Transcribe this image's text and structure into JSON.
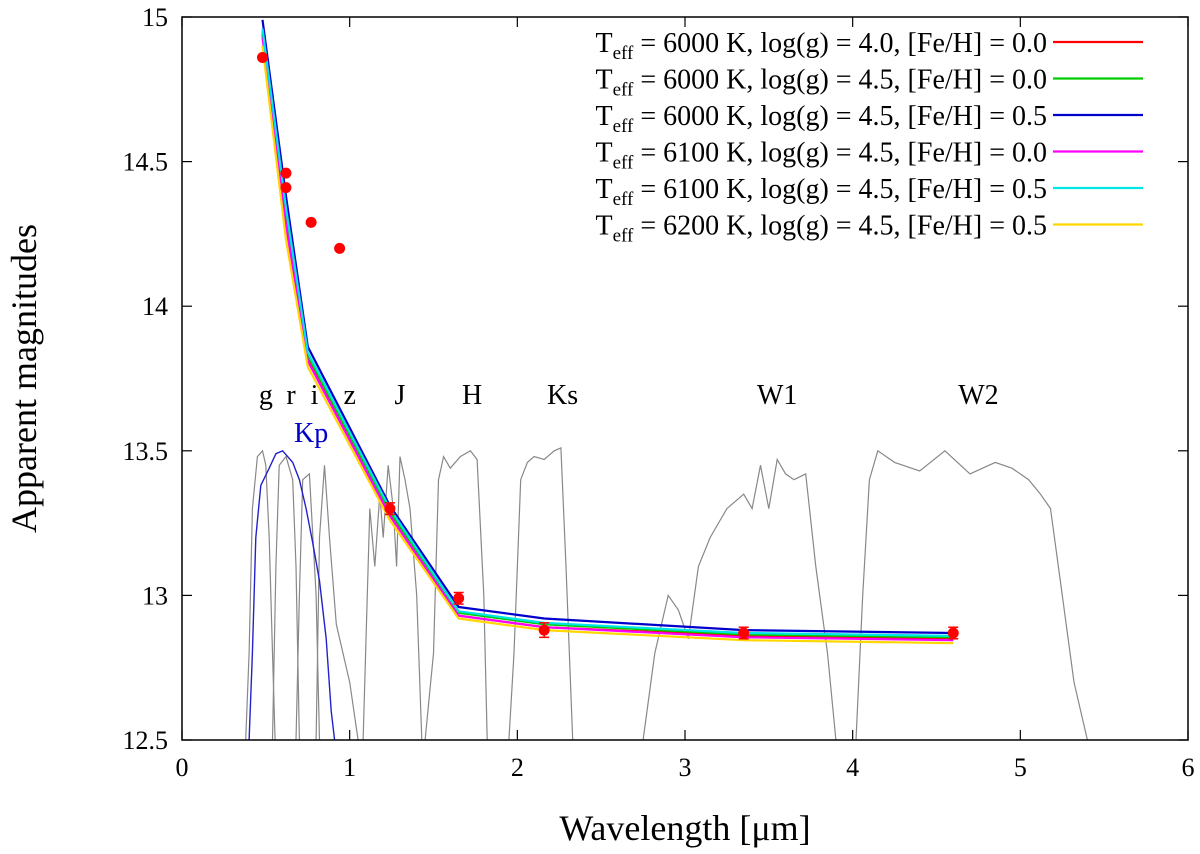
{
  "chart_data": {
    "type": "line",
    "xlabel": "Wavelength [μm]",
    "ylabel": "Apparent magnitudes",
    "xlim": [
      0,
      6
    ],
    "ylim": [
      12.5,
      15
    ],
    "x_ticks": [
      "0",
      "1",
      "2",
      "3",
      "4",
      "5",
      "6"
    ],
    "y_ticks": [
      "12.5",
      "13",
      "13.5",
      "14",
      "14.5",
      "15"
    ],
    "legend_position": "top-right",
    "series": [
      {
        "name": "Teff = 6000 K, log(g) = 4.0, [Fe/H] = 0.0",
        "color": "#ff0000",
        "x": [
          0.48,
          0.62,
          0.75,
          1.24,
          1.65,
          2.16,
          3.35,
          4.6
        ],
        "y": [
          14.94,
          14.3,
          13.82,
          13.28,
          12.93,
          12.89,
          12.86,
          12.85
        ]
      },
      {
        "name": "Teff = 6000 K, log(g) = 4.5, [Fe/H] = 0.0",
        "color": "#00cc00",
        "x": [
          0.48,
          0.62,
          0.75,
          1.24,
          1.65,
          2.16,
          3.35,
          4.6
        ],
        "y": [
          14.95,
          14.31,
          13.83,
          13.29,
          12.94,
          12.9,
          12.865,
          12.855
        ]
      },
      {
        "name": "Teff = 6000 K, log(g) = 4.5, [Fe/H] = 0.5",
        "color": "#0000cc",
        "x": [
          0.48,
          0.62,
          0.75,
          1.24,
          1.65,
          2.16,
          3.35,
          4.6
        ],
        "y": [
          14.99,
          14.38,
          13.86,
          13.31,
          12.96,
          12.92,
          12.88,
          12.87
        ]
      },
      {
        "name": "Teff = 6100 K, log(g) = 4.5, [Fe/H] = 0.0",
        "color": "#ff00ff",
        "x": [
          0.48,
          0.62,
          0.75,
          1.24,
          1.65,
          2.16,
          3.35,
          4.6
        ],
        "y": [
          14.93,
          14.28,
          13.81,
          13.275,
          12.93,
          12.89,
          12.855,
          12.845
        ]
      },
      {
        "name": "Teff = 6100 K, log(g) = 4.5, [Fe/H] = 0.5",
        "color": "#00e5e5",
        "x": [
          0.48,
          0.62,
          0.75,
          1.24,
          1.65,
          2.16,
          3.35,
          4.6
        ],
        "y": [
          14.96,
          14.34,
          13.84,
          13.3,
          12.945,
          12.905,
          12.87,
          12.86
        ]
      },
      {
        "name": "Teff = 6200 K, log(g) = 4.5, [Fe/H] = 0.5",
        "color": "#ffd700",
        "x": [
          0.48,
          0.62,
          0.75,
          1.24,
          1.65,
          2.16,
          3.35,
          4.6
        ],
        "y": [
          14.9,
          14.23,
          13.79,
          13.26,
          12.92,
          12.88,
          12.845,
          12.835
        ]
      }
    ],
    "observations": {
      "color": "#ff0000",
      "x": [
        0.48,
        0.62,
        0.62,
        0.77,
        0.94,
        1.24,
        1.65,
        2.16,
        3.35,
        4.6
      ],
      "y": [
        14.86,
        14.46,
        14.41,
        14.29,
        14.2,
        13.3,
        12.99,
        12.88,
        12.87,
        12.87
      ],
      "yerr": [
        0,
        0,
        0,
        0,
        0,
        0.02,
        0.02,
        0.025,
        0.02,
        0.02
      ]
    },
    "band_labels": [
      {
        "label": "g",
        "x": 0.5
      },
      {
        "label": "r",
        "x": 0.65
      },
      {
        "label": "i",
        "x": 0.79
      },
      {
        "label": "z",
        "x": 1.0
      },
      {
        "label": "J",
        "x": 1.3
      },
      {
        "label": "H",
        "x": 1.73
      },
      {
        "label": "Ks",
        "x": 2.27
      },
      {
        "label": "W1",
        "x": 3.55
      },
      {
        "label": "W2",
        "x": 4.75
      }
    ],
    "kp_label": {
      "label": "Kp",
      "x": 0.77,
      "color": "#0000cc"
    },
    "filter_color": "#888888",
    "kp_filter_color": "#2222cc",
    "filter_curves": [
      {
        "name": "g",
        "x": [
          0.38,
          0.4,
          0.42,
          0.45,
          0.48,
          0.5,
          0.52,
          0.54,
          0.555
        ],
        "y": [
          12.5,
          12.8,
          13.3,
          13.48,
          13.5,
          13.45,
          13.2,
          12.8,
          12.5
        ]
      },
      {
        "name": "r",
        "x": [
          0.54,
          0.56,
          0.58,
          0.62,
          0.66,
          0.68,
          0.7
        ],
        "y": [
          12.5,
          13.1,
          13.45,
          13.48,
          13.4,
          13.1,
          12.5
        ]
      },
      {
        "name": "i",
        "x": [
          0.68,
          0.7,
          0.72,
          0.76,
          0.8,
          0.82
        ],
        "y": [
          12.5,
          13.0,
          13.4,
          13.42,
          13.0,
          12.5
        ]
      },
      {
        "name": "z",
        "x": [
          0.8,
          0.82,
          0.85,
          0.88,
          0.92,
          0.96,
          1.0,
          1.05
        ],
        "y": [
          12.5,
          13.2,
          13.45,
          13.2,
          12.9,
          12.8,
          12.7,
          12.5
        ]
      },
      {
        "name": "J",
        "x": [
          1.08,
          1.12,
          1.15,
          1.18,
          1.2,
          1.23,
          1.26,
          1.28,
          1.3,
          1.33,
          1.36,
          1.4,
          1.43
        ],
        "y": [
          12.5,
          13.3,
          13.1,
          13.35,
          13.2,
          13.45,
          13.3,
          13.1,
          13.48,
          13.4,
          13.3,
          13.0,
          12.5
        ]
      },
      {
        "name": "H",
        "x": [
          1.45,
          1.5,
          1.53,
          1.56,
          1.6,
          1.66,
          1.72,
          1.76,
          1.8,
          1.82
        ],
        "y": [
          12.5,
          12.8,
          13.4,
          13.48,
          13.44,
          13.48,
          13.5,
          13.47,
          13.0,
          12.5
        ]
      },
      {
        "name": "Ks",
        "x": [
          1.95,
          1.98,
          2.02,
          2.06,
          2.1,
          2.16,
          2.22,
          2.26,
          2.29,
          2.33
        ],
        "y": [
          12.5,
          12.8,
          13.4,
          13.46,
          13.48,
          13.47,
          13.5,
          13.51,
          13.1,
          12.5
        ]
      },
      {
        "name": "W1",
        "x": [
          2.75,
          2.82,
          2.86,
          2.9,
          2.96,
          3.02,
          3.08,
          3.15,
          3.25,
          3.35,
          3.4,
          3.45,
          3.5,
          3.55,
          3.6,
          3.65,
          3.72,
          3.78,
          3.85,
          3.9
        ],
        "y": [
          12.5,
          12.8,
          12.9,
          13.0,
          12.95,
          12.85,
          13.1,
          13.2,
          13.3,
          13.35,
          13.3,
          13.45,
          13.3,
          13.47,
          13.42,
          13.4,
          13.42,
          13.1,
          12.8,
          12.5
        ]
      },
      {
        "name": "W2",
        "x": [
          4.02,
          4.06,
          4.1,
          4.15,
          4.25,
          4.4,
          4.55,
          4.7,
          4.85,
          4.95,
          5.05,
          5.12,
          5.18,
          5.25,
          5.32,
          5.4
        ],
        "y": [
          12.5,
          13.0,
          13.4,
          13.5,
          13.46,
          13.43,
          13.5,
          13.42,
          13.46,
          13.44,
          13.4,
          13.35,
          13.3,
          13.0,
          12.7,
          12.5
        ]
      },
      {
        "name": "Kp",
        "kp": true,
        "x": [
          0.4,
          0.42,
          0.44,
          0.47,
          0.52,
          0.56,
          0.6,
          0.66,
          0.7,
          0.74,
          0.78,
          0.82,
          0.86,
          0.89,
          0.91
        ],
        "y": [
          12.5,
          12.8,
          13.2,
          13.38,
          13.44,
          13.49,
          13.5,
          13.46,
          13.4,
          13.3,
          13.18,
          13.05,
          12.85,
          12.6,
          12.5
        ]
      }
    ]
  }
}
